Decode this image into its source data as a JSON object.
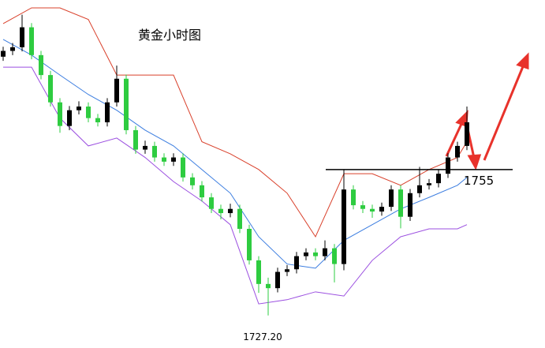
{
  "chart_data": {
    "type": "candlestick",
    "title": "黄金小时图",
    "up_color": "#000000",
    "down_color": "#2ecc40",
    "ylim": [
      1721,
      1787.3
    ],
    "open": [
      1776.5,
      1777.6,
      1778.3,
      1782.1,
      1776.8,
      1773.0,
      1767.8,
      1763.3,
      1766.3,
      1767.0,
      1764.8,
      1764.0,
      1767.8,
      1772.3,
      1762.5,
      1758.8,
      1759.5,
      1757.3,
      1756.5,
      1757.3,
      1753.5,
      1752.0,
      1749.7,
      1747.5,
      1746.7,
      1747.5,
      1743.7,
      1737.7,
      1733.2,
      1732.4,
      1735.5,
      1736.0,
      1738.5,
      1739.2,
      1738.5,
      1740.0,
      1737.0,
      1751.2,
      1748.2,
      1747.5,
      1747.0,
      1747.9,
      1751.2,
      1746.0,
      1750.5,
      1752.0,
      1752.4,
      1754.2,
      1757.3,
      1759.5
    ],
    "high": [
      1778.4,
      1779.1,
      1784.5,
      1782.9,
      1777.6,
      1773.8,
      1768.6,
      1767.1,
      1768.0,
      1767.8,
      1765.6,
      1768.6,
      1774.8,
      1773.1,
      1763.3,
      1760.5,
      1760.3,
      1758.1,
      1758.1,
      1758.1,
      1754.3,
      1752.8,
      1750.5,
      1748.3,
      1748.5,
      1748.3,
      1744.5,
      1738.5,
      1734.4,
      1736.3,
      1736.8,
      1739.3,
      1740.0,
      1740.0,
      1741.5,
      1740.8,
      1755.0,
      1752.0,
      1749.0,
      1748.3,
      1748.7,
      1752.0,
      1752.0,
      1751.3,
      1755.5,
      1753.2,
      1755.0,
      1758.1,
      1760.3,
      1767.0
    ],
    "low": [
      1775.7,
      1776.8,
      1777.5,
      1776.0,
      1772.2,
      1767.0,
      1762.0,
      1762.5,
      1765.5,
      1764.0,
      1763.2,
      1763.2,
      1767.0,
      1761.7,
      1758.0,
      1758.0,
      1756.5,
      1755.7,
      1755.7,
      1752.7,
      1751.2,
      1748.9,
      1746.7,
      1745.5,
      1745.9,
      1742.9,
      1736.9,
      1731.5,
      1727.2,
      1731.6,
      1734.7,
      1735.2,
      1737.7,
      1737.7,
      1737.7,
      1733.5,
      1735.8,
      1747.4,
      1746.7,
      1745.8,
      1746.2,
      1747.1,
      1743.8,
      1745.2,
      1749.7,
      1751.2,
      1751.6,
      1753.4,
      1756.5,
      1758.7
    ],
    "close": [
      1777.6,
      1778.3,
      1782.1,
      1776.8,
      1773.0,
      1767.8,
      1763.3,
      1766.3,
      1767.0,
      1764.8,
      1764.0,
      1767.8,
      1772.3,
      1762.5,
      1758.8,
      1759.5,
      1757.3,
      1756.5,
      1757.3,
      1753.5,
      1752.0,
      1749.7,
      1747.5,
      1746.7,
      1747.5,
      1743.7,
      1737.7,
      1733.2,
      1732.4,
      1735.5,
      1736.0,
      1738.5,
      1739.2,
      1738.5,
      1740.0,
      1737.0,
      1751.2,
      1748.2,
      1747.5,
      1747.0,
      1747.9,
      1751.2,
      1746.0,
      1750.5,
      1752.0,
      1752.4,
      1754.2,
      1757.3,
      1759.5,
      1764.0
    ],
    "bands": {
      "x": [
        0,
        3,
        6,
        9,
        12,
        15,
        18,
        21,
        24,
        27,
        30,
        33,
        36,
        39,
        42,
        45,
        48,
        49
      ],
      "lines": [
        {
          "color": "#d9402b",
          "values": [
            1782.8,
            1785.8,
            1785.8,
            1783.6,
            1773.0,
            1773.0,
            1773.0,
            1760.3,
            1758.0,
            1755.0,
            1750.5,
            1742.2,
            1754.2,
            1754.2,
            1752.0,
            1755.0,
            1757.3,
            1760.3
          ]
        },
        {
          "color": "#3b7de0",
          "values": [
            1779.8,
            1776.8,
            1773.0,
            1769.3,
            1766.3,
            1762.5,
            1759.5,
            1755.0,
            1750.5,
            1742.2,
            1737.0,
            1736.2,
            1741.5,
            1744.5,
            1747.5,
            1749.7,
            1752.0,
            1753.5
          ]
        },
        {
          "color": "#9b4fe0",
          "values": [
            1774.5,
            1774.5,
            1764.8,
            1759.5,
            1761.0,
            1757.3,
            1752.7,
            1749.0,
            1744.5,
            1729.4,
            1730.2,
            1731.7,
            1730.9,
            1737.7,
            1742.2,
            1743.7,
            1743.7,
            1744.5
          ]
        }
      ]
    },
    "annotations": [
      {
        "value": 1755,
        "label": "1755"
      },
      {
        "value": 1727.2,
        "label": "1727.20"
      }
    ]
  }
}
